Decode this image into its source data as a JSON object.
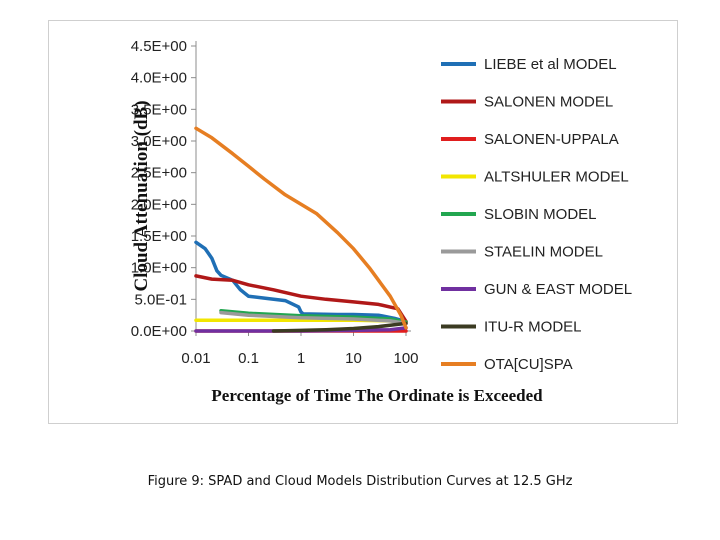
{
  "chart_data": {
    "type": "line",
    "ylabel": "Cloud Attenuation (dB)",
    "xlabel": "Percentage of Time The Ordinate is Exceeded",
    "x_scale": "log",
    "xlim": [
      0.01,
      100
    ],
    "ylim": [
      0,
      4.5
    ],
    "x_ticks": [
      0.01,
      0.1,
      1,
      10,
      100
    ],
    "x_tick_labels": [
      "0.01",
      "0.1",
      "1",
      "10",
      "100"
    ],
    "y_ticks": [
      0,
      0.5,
      1.0,
      1.5,
      2.0,
      2.5,
      3.0,
      3.5,
      4.0,
      4.5
    ],
    "y_tick_labels": [
      "0.0E+00",
      "5.0E-01",
      "1.0E+00",
      "1.5E+00",
      "2.0E+00",
      "2.5E+00",
      "3.0E+00",
      "3.5E+00",
      "4.0E+00",
      "4.5E+00"
    ],
    "legend_position": "right",
    "series": [
      {
        "name": "LIEBE et al MODEL",
        "color": "#1f6fb5",
        "x": [
          0.01,
          0.015,
          0.02,
          0.025,
          0.03,
          0.05,
          0.07,
          0.1,
          0.2,
          0.5,
          0.9,
          1.0,
          1.1,
          5,
          10,
          30,
          60,
          100
        ],
        "y": [
          1.4,
          1.3,
          1.15,
          0.95,
          0.88,
          0.8,
          0.65,
          0.55,
          0.52,
          0.48,
          0.38,
          0.3,
          0.27,
          0.26,
          0.26,
          0.25,
          0.2,
          0.15
        ]
      },
      {
        "name": "SALONEN MODEL",
        "color": "#b01818",
        "x": [
          0.01,
          0.02,
          0.05,
          0.1,
          0.3,
          1,
          3,
          10,
          30,
          70,
          100
        ],
        "y": [
          0.87,
          0.82,
          0.8,
          0.73,
          0.65,
          0.55,
          0.5,
          0.46,
          0.42,
          0.35,
          0.15
        ]
      },
      {
        "name": "SALONEN-UPPALA",
        "color": "#e01e1e",
        "x": [
          0.01,
          100
        ],
        "y": [
          0.0,
          0.0
        ]
      },
      {
        "name": "ALTSHULER MODEL",
        "color": "#f2e600",
        "x": [
          0.01,
          0.1,
          1,
          10,
          50,
          100
        ],
        "y": [
          0.17,
          0.17,
          0.17,
          0.17,
          0.16,
          0.14
        ]
      },
      {
        "name": "SLOBIN MODEL",
        "color": "#22a650",
        "x": [
          0.03,
          0.1,
          1,
          10,
          50,
          100
        ],
        "y": [
          0.32,
          0.28,
          0.24,
          0.22,
          0.19,
          0.14
        ]
      },
      {
        "name": "STAELIN MODEL",
        "color": "#9a9a9a",
        "x": [
          0.03,
          0.1,
          1,
          10,
          50,
          100
        ],
        "y": [
          0.29,
          0.25,
          0.21,
          0.19,
          0.16,
          0.12
        ]
      },
      {
        "name": "GUN & EAST MODEL",
        "color": "#7030a0",
        "x": [
          0.01,
          1,
          10,
          50,
          100
        ],
        "y": [
          0.0,
          0.0,
          0.01,
          0.02,
          0.05
        ]
      },
      {
        "name": "ITU-R MODEL",
        "color": "#3b3b22",
        "x": [
          0.3,
          1,
          3,
          10,
          30,
          60,
          100
        ],
        "y": [
          0.0,
          0.01,
          0.02,
          0.04,
          0.07,
          0.1,
          0.12
        ]
      },
      {
        "name": "OTA[CU]SPA",
        "color": "#e67e22",
        "x": [
          0.01,
          0.02,
          0.05,
          0.1,
          0.2,
          0.5,
          1,
          2,
          5,
          10,
          20,
          50,
          80,
          100
        ],
        "y": [
          3.2,
          3.05,
          2.8,
          2.6,
          2.4,
          2.15,
          2.0,
          1.85,
          1.55,
          1.3,
          1.0,
          0.55,
          0.25,
          0.05
        ]
      }
    ]
  },
  "caption": "Figure 9: SPAD and Cloud Models Distribution Curves at 12.5 GHz"
}
